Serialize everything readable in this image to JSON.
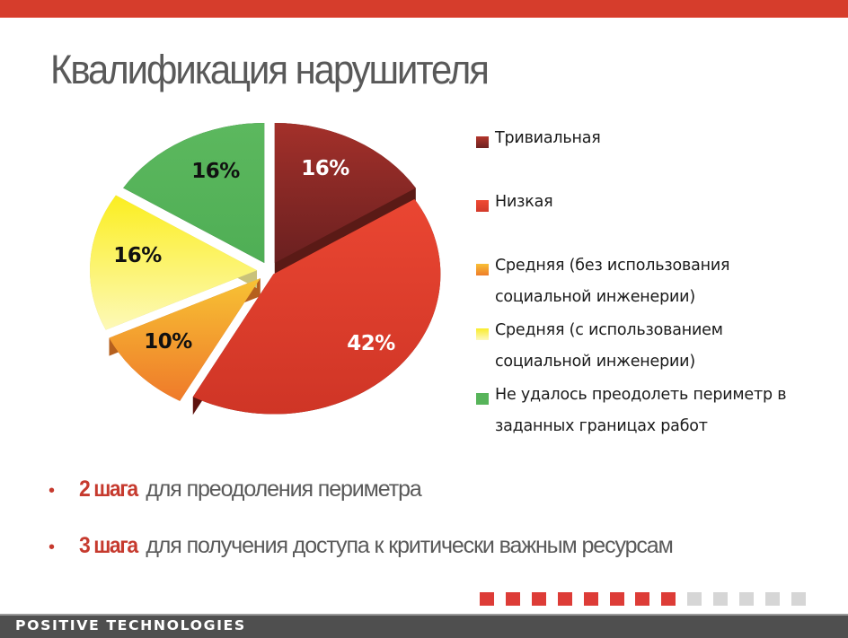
{
  "slide": {
    "title": "Квалификация нарушителя",
    "bullets": [
      {
        "strong": "2 шага",
        "rest": "для преодоления периметра"
      },
      {
        "strong": "3 шага",
        "rest": "для получения доступа к критически важным ресурсам"
      }
    ],
    "bullet_glyph": "•",
    "footer_logo": "POSITIVE TECHNOLOGIES",
    "progress": {
      "filled": 8,
      "total": 13,
      "filled_color": "#dd3c37",
      "empty_color": "#d6d6d6"
    },
    "colors": {
      "top_bar": "#d63d2c",
      "footer": "#4f4f4f",
      "accent": "#c63a2e"
    }
  },
  "chart_data": {
    "type": "pie",
    "title": "Квалификация нарушителя",
    "style": "3d-exploded",
    "legend_position": "right",
    "categories": [
      "Тривиальная",
      "Низкая",
      "Средняя (без использования\nсоциальной инженерии)",
      "Средняя (с использованием\nсоциальной инженерии)",
      "Не удалось преодолеть периметр в\nзаданных границах работ"
    ],
    "values": [
      16,
      42,
      10,
      16,
      16
    ],
    "labels": [
      "16%",
      "42%",
      "10%",
      "16%",
      "16%"
    ],
    "colors": [
      "#8e2a22",
      "#e5432f",
      "#f5a12e",
      "#fbf27a",
      "#57b45a"
    ],
    "label_colors": [
      "#ffffff",
      "#ffffff",
      "#111111",
      "#111111",
      "#111111"
    ]
  }
}
